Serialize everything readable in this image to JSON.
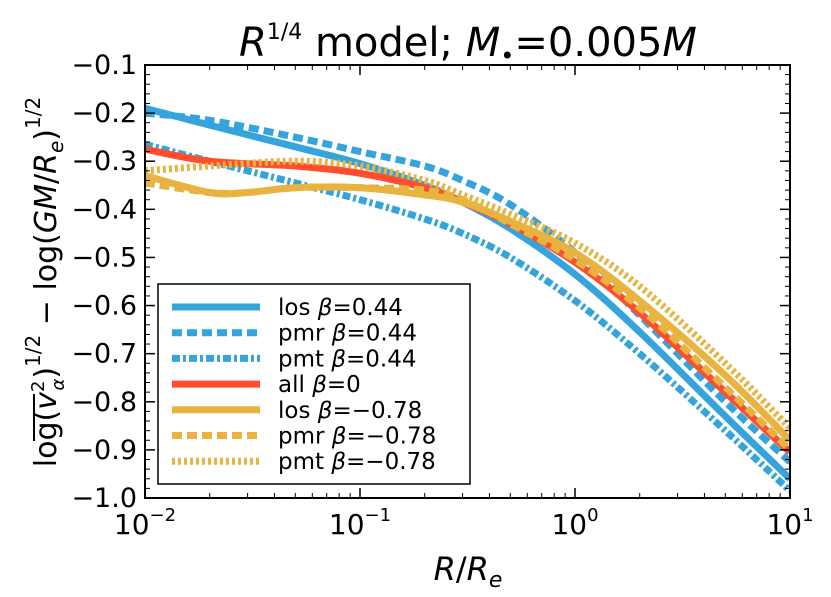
{
  "chart_data": {
    "type": "line",
    "title": "R^1/4 model; M•=0.005M",
    "title_parts": {
      "base": "R",
      "exp": "1/4",
      "middle": " model; ",
      "mass": "M",
      "bullet": "•",
      "eq": "=0.005",
      "tail": "M"
    },
    "xlabel": "R/Re",
    "xlabel_parts": {
      "r": "R",
      "slash": "/",
      "re": "R",
      "sub": "e"
    },
    "ylabel": "log( ⟨v_α^2⟩ )^1/2 − log(GM/Re)^1/2",
    "ylabel_parts": {
      "log1": "log(",
      "v": "v",
      "vexp": "2",
      "vsub": "α",
      "close1": ")",
      "exp1": "1/2",
      "minus": " − log(",
      "gm": "GM",
      "slash": "/",
      "re": "R",
      "resub": "e",
      "close2": ")",
      "exp2": "1/2"
    },
    "xscale": "log",
    "xlim": [
      0.01,
      10
    ],
    "ylim": [
      -1.0,
      -0.1
    ],
    "xticks": [
      {
        "value": 0.01,
        "base": "10",
        "exp": "−2"
      },
      {
        "value": 0.1,
        "base": "10",
        "exp": "−1"
      },
      {
        "value": 1,
        "base": "10",
        "exp": "0"
      },
      {
        "value": 10,
        "base": "10",
        "exp": "1"
      }
    ],
    "yticks": [
      {
        "value": -0.1,
        "label": "−0.1"
      },
      {
        "value": -0.2,
        "label": "−0.2"
      },
      {
        "value": -0.3,
        "label": "−0.3"
      },
      {
        "value": -0.4,
        "label": "−0.4"
      },
      {
        "value": -0.5,
        "label": "−0.5"
      },
      {
        "value": -0.6,
        "label": "−0.6"
      },
      {
        "value": -0.7,
        "label": "−0.7"
      },
      {
        "value": -0.8,
        "label": "−0.8"
      },
      {
        "value": -0.9,
        "label": "−0.9"
      },
      {
        "value": -1.0,
        "label": "−1.0"
      }
    ],
    "legend_position": "lower-left",
    "series": [
      {
        "name": "los β=0.44",
        "prefix": "los",
        "beta": "0.44",
        "color": "#36a4dc",
        "style": "solid",
        "x": [
          0.01,
          0.02,
          0.05,
          0.1,
          0.2,
          0.3,
          0.5,
          1,
          2,
          5,
          10
        ],
        "y": [
          -0.19,
          -0.225,
          -0.27,
          -0.305,
          -0.35,
          -0.385,
          -0.44,
          -0.535,
          -0.655,
          -0.83,
          -0.96
        ]
      },
      {
        "name": "pmr β=0.44",
        "prefix": "pmr",
        "beta": "0.44",
        "color": "#36a4dc",
        "style": "dashed",
        "x": [
          0.01,
          0.02,
          0.05,
          0.1,
          0.2,
          0.3,
          0.5,
          1,
          2,
          5,
          10
        ],
        "y": [
          -0.2,
          -0.215,
          -0.25,
          -0.28,
          -0.31,
          -0.34,
          -0.39,
          -0.49,
          -0.62,
          -0.8,
          -0.925
        ]
      },
      {
        "name": "pmt β=0.44",
        "prefix": "pmt",
        "beta": "0.44",
        "color": "#36a4dc",
        "style": "dashdot",
        "x": [
          0.01,
          0.02,
          0.05,
          0.1,
          0.2,
          0.3,
          0.5,
          1,
          2,
          5,
          10
        ],
        "y": [
          -0.265,
          -0.3,
          -0.345,
          -0.38,
          -0.42,
          -0.45,
          -0.5,
          -0.59,
          -0.7,
          -0.86,
          -0.985
        ]
      },
      {
        "name": "all β=0",
        "prefix": "all",
        "beta": "0",
        "color": "#ff4d2e",
        "style": "solid",
        "x": [
          0.01,
          0.02,
          0.05,
          0.1,
          0.2,
          0.3,
          0.5,
          1,
          2,
          5,
          10
        ],
        "y": [
          -0.275,
          -0.3,
          -0.31,
          -0.325,
          -0.355,
          -0.385,
          -0.43,
          -0.51,
          -0.615,
          -0.78,
          -0.905
        ]
      },
      {
        "name": "los β=−0.78",
        "prefix": "los",
        "beta": "−0.78",
        "color": "#e8b33e",
        "style": "solid",
        "x": [
          0.01,
          0.02,
          0.03,
          0.05,
          0.1,
          0.2,
          0.3,
          0.5,
          1,
          2,
          5,
          10
        ],
        "y": [
          -0.33,
          -0.365,
          -0.365,
          -0.355,
          -0.355,
          -0.37,
          -0.385,
          -0.425,
          -0.49,
          -0.59,
          -0.745,
          -0.88
        ]
      },
      {
        "name": "pmr β=−0.78",
        "prefix": "pmr",
        "beta": "−0.78",
        "color": "#e8b33e",
        "style": "dashed",
        "x": [
          0.01,
          0.02,
          0.03,
          0.05,
          0.1,
          0.2,
          0.3,
          0.5,
          1,
          2,
          5,
          10
        ],
        "y": [
          -0.345,
          -0.365,
          -0.365,
          -0.355,
          -0.355,
          -0.36,
          -0.38,
          -0.43,
          -0.505,
          -0.605,
          -0.77,
          -0.9
        ]
      },
      {
        "name": "pmt β=−0.78",
        "prefix": "pmt",
        "beta": "−0.78",
        "color": "#e8b33e",
        "style": "dotted",
        "x": [
          0.01,
          0.02,
          0.05,
          0.1,
          0.2,
          0.3,
          0.5,
          1,
          2,
          5,
          10
        ],
        "y": [
          -0.32,
          -0.31,
          -0.3,
          -0.31,
          -0.34,
          -0.37,
          -0.41,
          -0.47,
          -0.56,
          -0.72,
          -0.855
        ]
      }
    ]
  }
}
